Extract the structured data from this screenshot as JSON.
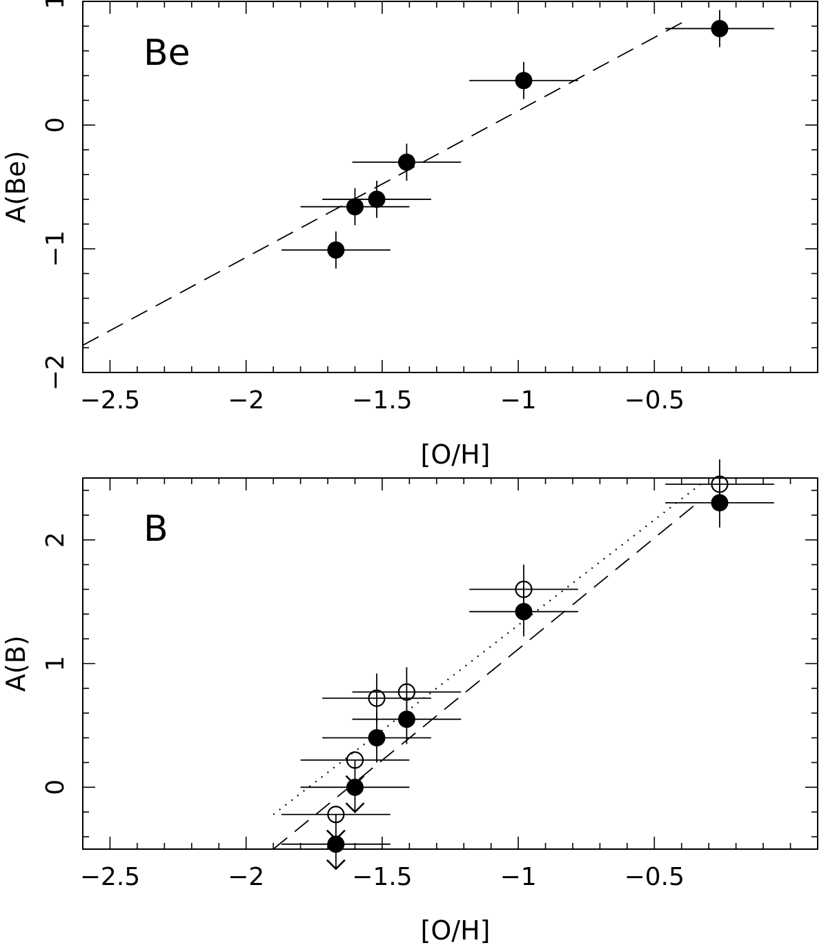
{
  "chart_data": [
    {
      "type": "scatter",
      "panel_label": "Be",
      "xlabel": "[O/H]",
      "ylabel": "A(Be)",
      "xlim": [
        -2.6,
        0.1
      ],
      "ylim": [
        -2.0,
        1.0
      ],
      "xticks": [
        -2.5,
        -2,
        -1.5,
        -1,
        -0.5
      ],
      "xtick_labels": [
        "−2.5",
        "−2",
        "−1.5",
        "−1",
        "−0.5"
      ],
      "yticks": [
        -2,
        -1,
        0,
        1
      ],
      "ytick_labels": [
        "−2",
        "−1",
        "0",
        "1"
      ],
      "x_minor_step": 0.1,
      "y_minor_step": 0.2,
      "series": [
        {
          "name": "Be",
          "marker": "filled",
          "points": [
            {
              "x": -1.67,
              "y": -1.01,
              "xerr": 0.2,
              "yerr": 0.15,
              "upper_limit": false
            },
            {
              "x": -1.6,
              "y": -0.66,
              "xerr": 0.2,
              "yerr": 0.15,
              "upper_limit": false
            },
            {
              "x": -1.52,
              "y": -0.6,
              "xerr": 0.2,
              "yerr": 0.15,
              "upper_limit": false
            },
            {
              "x": -1.41,
              "y": -0.3,
              "xerr": 0.2,
              "yerr": 0.15,
              "upper_limit": false
            },
            {
              "x": -0.98,
              "y": 0.36,
              "xerr": 0.2,
              "yerr": 0.15,
              "upper_limit": false
            },
            {
              "x": -0.26,
              "y": 0.78,
              "xerr": 0.2,
              "yerr": 0.15,
              "upper_limit": false
            }
          ]
        }
      ],
      "lines": [
        {
          "style": "dashed",
          "x": [
            -2.6,
            -0.38
          ],
          "y": [
            -1.78,
            0.85
          ]
        }
      ]
    },
    {
      "type": "scatter",
      "panel_label": "B",
      "xlabel": "[O/H]",
      "ylabel": "A(B)",
      "xlim": [
        -2.6,
        0.1
      ],
      "ylim": [
        -0.5,
        2.5
      ],
      "xticks": [
        -2.5,
        -2,
        -1.5,
        -1,
        -0.5
      ],
      "xtick_labels": [
        "−2.5",
        "−2",
        "−1.5",
        "−1",
        "−0.5"
      ],
      "yticks": [
        0,
        1,
        2
      ],
      "ytick_labels": [
        "0",
        "1",
        "2"
      ],
      "x_minor_step": 0.1,
      "y_minor_step": 0.2,
      "series": [
        {
          "name": "B (filled)",
          "marker": "filled",
          "points": [
            {
              "x": -1.67,
              "y": -0.46,
              "xerr": 0.2,
              "yerr": 0,
              "upper_limit": true
            },
            {
              "x": -1.6,
              "y": 0.0,
              "xerr": 0.2,
              "yerr": 0,
              "upper_limit": true
            },
            {
              "x": -1.52,
              "y": 0.4,
              "xerr": 0.2,
              "yerr": 0.2,
              "upper_limit": false
            },
            {
              "x": -1.41,
              "y": 0.55,
              "xerr": 0.2,
              "yerr": 0.2,
              "upper_limit": false
            },
            {
              "x": -0.98,
              "y": 1.42,
              "xerr": 0.2,
              "yerr": 0.2,
              "upper_limit": false
            },
            {
              "x": -0.26,
              "y": 2.3,
              "xerr": 0.2,
              "yerr": 0.2,
              "upper_limit": false
            }
          ]
        },
        {
          "name": "B (open)",
          "marker": "open",
          "points": [
            {
              "x": -1.67,
              "y": -0.22,
              "xerr": 0.2,
              "yerr": 0,
              "upper_limit": true
            },
            {
              "x": -1.6,
              "y": 0.22,
              "xerr": 0.2,
              "yerr": 0,
              "upper_limit": true
            },
            {
              "x": -1.52,
              "y": 0.72,
              "xerr": 0.2,
              "yerr": 0.2,
              "upper_limit": false
            },
            {
              "x": -1.41,
              "y": 0.77,
              "xerr": 0.2,
              "yerr": 0.2,
              "upper_limit": false
            },
            {
              "x": -0.98,
              "y": 1.6,
              "xerr": 0.2,
              "yerr": 0.2,
              "upper_limit": false
            },
            {
              "x": -0.26,
              "y": 2.45,
              "xerr": 0.2,
              "yerr": 0.2,
              "upper_limit": false
            }
          ]
        }
      ],
      "lines": [
        {
          "style": "dashed",
          "x": [
            -1.9,
            -0.33
          ],
          "y": [
            -0.5,
            2.32
          ]
        },
        {
          "style": "dotted",
          "x": [
            -1.9,
            -0.33
          ],
          "y": [
            -0.22,
            2.45
          ]
        }
      ]
    }
  ]
}
